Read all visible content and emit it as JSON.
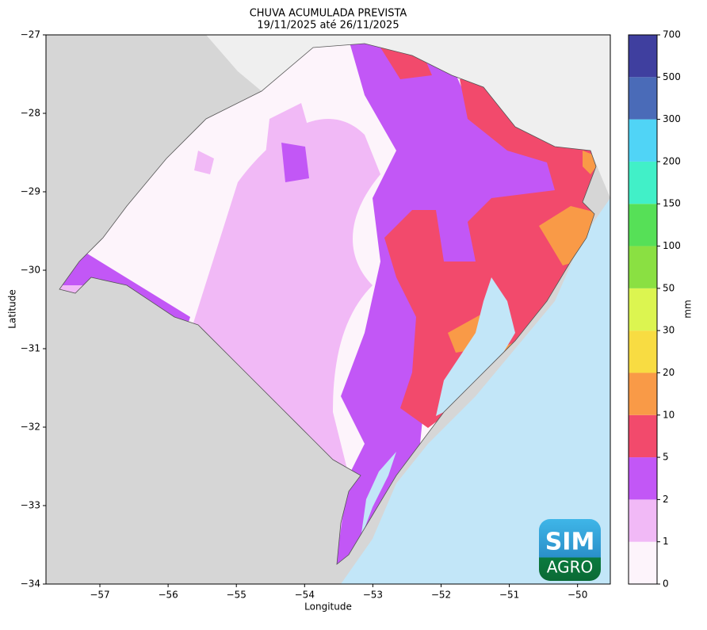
{
  "title": "CHUVA ACUMULADA PREVISTA",
  "subtitle": "19/11/2025 até 26/11/2025",
  "x_label": "Longitude",
  "y_label": "Latitude",
  "xlim": [
    -57.79,
    -49.52
  ],
  "ylim": [
    -34,
    -27
  ],
  "xticks": [
    {
      "value": -57,
      "label": "−57"
    },
    {
      "value": -56,
      "label": "−56"
    },
    {
      "value": -55,
      "label": "−55"
    },
    {
      "value": -54,
      "label": "−54"
    },
    {
      "value": -53,
      "label": "−53"
    },
    {
      "value": -52,
      "label": "−52"
    },
    {
      "value": -51,
      "label": "−51"
    },
    {
      "value": -50,
      "label": "−50"
    }
  ],
  "yticks": [
    {
      "value": -27,
      "label": "−27"
    },
    {
      "value": -28,
      "label": "−28"
    },
    {
      "value": -29,
      "label": "−29"
    },
    {
      "value": -30,
      "label": "−30"
    },
    {
      "value": -31,
      "label": "−31"
    },
    {
      "value": -32,
      "label": "−32"
    },
    {
      "value": -33,
      "label": "−33"
    },
    {
      "value": -34,
      "label": "−34"
    }
  ],
  "colorbar": {
    "label": "mm",
    "levels": [
      0,
      1,
      2,
      5,
      10,
      20,
      30,
      50,
      100,
      150,
      200,
      300,
      500,
      700
    ],
    "colors": [
      "#fdf4fb",
      "#f1b9f6",
      "#c257f6",
      "#f24a6c",
      "#f99a47",
      "#f8dc42",
      "#dcf550",
      "#8ae042",
      "#56e057",
      "#41f0c8",
      "#50d4f6",
      "#4a6bb8",
      "#3f3f9f"
    ]
  },
  "logo": {
    "top": "SIM",
    "bottom": "AGRO"
  }
}
